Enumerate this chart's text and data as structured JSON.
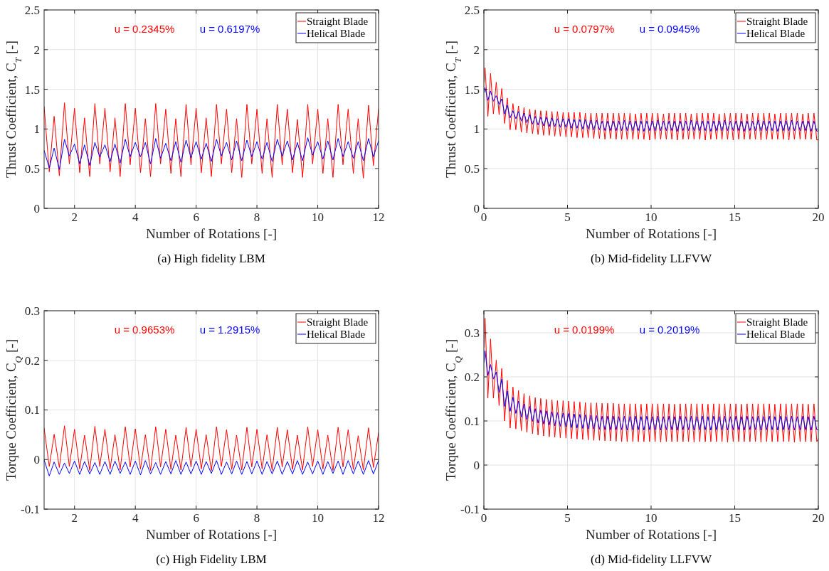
{
  "chart_data": [
    {
      "type": "line",
      "title": "(a)  High fidelity LBM",
      "xlabel": "Number of Rotations [-]",
      "ylabel": "Thrust Coefficient, C$_{T}$ [-]",
      "annotations": [
        "u = 0.2345%",
        "u = 0.6197%"
      ],
      "xlim": [
        1,
        12
      ],
      "xticks": [
        2,
        4,
        6,
        8,
        10,
        12
      ],
      "ylim": [
        0,
        2.5
      ],
      "yticks": [
        0,
        0.5,
        1,
        1.5,
        2,
        2.5
      ],
      "grid": true,
      "legend": "top right",
      "x": [
        1,
        1.17,
        1.33,
        1.5,
        1.67,
        1.83,
        2,
        2.17,
        2.33,
        2.5,
        2.67,
        2.83,
        3,
        3.17,
        3.33,
        3.5,
        3.67,
        3.83,
        4,
        4.17,
        4.33,
        4.5,
        4.67,
        4.83,
        5,
        5.17,
        5.33,
        5.5,
        5.67,
        5.83,
        6,
        6.17,
        6.33,
        6.5,
        6.67,
        6.83,
        7,
        7.17,
        7.33,
        7.5,
        7.67,
        7.83,
        8,
        8.17,
        8.33,
        8.5,
        8.67,
        8.83,
        9,
        9.17,
        9.33,
        9.5,
        9.67,
        9.83,
        10,
        10.17,
        10.33,
        10.5,
        10.67,
        10.83,
        11,
        11.17,
        11.33,
        11.5,
        11.67,
        11.83,
        12
      ],
      "series": [
        {
          "name": "Straight Blade",
          "color": "#ff0000",
          "values": [
            1.28,
            0.46,
            1.16,
            0.41,
            1.33,
            0.56,
            1.26,
            0.45,
            1.14,
            0.4,
            1.32,
            0.56,
            1.26,
            0.46,
            1.14,
            0.4,
            1.32,
            0.55,
            1.26,
            0.45,
            1.13,
            0.4,
            1.32,
            0.56,
            1.25,
            0.44,
            1.13,
            0.4,
            1.31,
            0.55,
            1.26,
            0.45,
            1.14,
            0.4,
            1.31,
            0.56,
            1.25,
            0.45,
            1.13,
            0.39,
            1.31,
            0.56,
            1.25,
            0.44,
            1.13,
            0.39,
            1.31,
            0.55,
            1.25,
            0.45,
            1.12,
            0.39,
            1.31,
            0.56,
            1.25,
            0.44,
            1.13,
            0.39,
            1.31,
            0.55,
            1.25,
            0.44,
            1.13,
            0.38,
            1.3,
            0.54,
            1.25
          ]
        },
        {
          "name": "Helical Blade",
          "color": "#0000ff",
          "values": [
            0.73,
            0.51,
            0.76,
            0.49,
            0.87,
            0.66,
            0.81,
            0.56,
            0.8,
            0.54,
            0.83,
            0.65,
            0.8,
            0.59,
            0.81,
            0.57,
            0.87,
            0.65,
            0.83,
            0.65,
            0.83,
            0.56,
            0.88,
            0.63,
            0.82,
            0.6,
            0.84,
            0.58,
            0.86,
            0.64,
            0.84,
            0.62,
            0.82,
            0.59,
            0.87,
            0.66,
            0.83,
            0.61,
            0.85,
            0.6,
            0.86,
            0.65,
            0.84,
            0.62,
            0.83,
            0.59,
            0.87,
            0.66,
            0.85,
            0.61,
            0.83,
            0.6,
            0.89,
            0.67,
            0.84,
            0.62,
            0.85,
            0.61,
            0.88,
            0.65,
            0.84,
            0.63,
            0.84,
            0.6,
            0.88,
            0.65,
            0.85
          ]
        }
      ]
    },
    {
      "type": "line",
      "title": "(b)  Mid-fidelity LLFVW",
      "xlabel": "Number of Rotations [-]",
      "ylabel": "Thrust Coefficient, C$_{T}$ [-]",
      "annotations": [
        "u = 0.0797%",
        "u = 0.0945%"
      ],
      "xlim": [
        0,
        20
      ],
      "xticks": [
        0,
        5,
        10,
        15,
        20
      ],
      "ylim": [
        0,
        2.5
      ],
      "yticks": [
        0,
        0.5,
        1,
        1.5,
        2,
        2.5
      ],
      "grid": true,
      "legend": "top right",
      "x": [
        0,
        0.07,
        0.24,
        0.4,
        0.57,
        0.74,
        0.91,
        1.07,
        1.24,
        1.4,
        1.57,
        1.74,
        1.91,
        2.07,
        2.24,
        2.4,
        2.57,
        2.74,
        2.91,
        3.07,
        3.24,
        3.4,
        3.57,
        3.74,
        3.91,
        4.07,
        4.24,
        4.4,
        4.57,
        4.74,
        4.91,
        5.07,
        5.24,
        5.4,
        5.57,
        5.74,
        5.91,
        6.07,
        6.24,
        6.4,
        6.57,
        6.74,
        6.91,
        7.07,
        7.24,
        7.4,
        7.57,
        7.74,
        7.91,
        8.07,
        8.24,
        8.4,
        8.57,
        8.74,
        8.91,
        9.07,
        9.24,
        9.4,
        9.57,
        9.74,
        9.91,
        10.07,
        10.24,
        10.4,
        10.57,
        10.74,
        10.91,
        11.07,
        11.24,
        11.4,
        11.57,
        11.74,
        11.91,
        12.07,
        12.24,
        12.4,
        12.57,
        12.74,
        12.91,
        13.07,
        13.24,
        13.4,
        13.57,
        13.74,
        13.91,
        14.07,
        14.24,
        14.4,
        14.57,
        14.74,
        14.91,
        15.07,
        15.24,
        15.4,
        15.57,
        15.74,
        15.91,
        16.07,
        16.24,
        16.4,
        16.57,
        16.74,
        16.91,
        17.07,
        17.24,
        17.4,
        17.57,
        17.74,
        17.91,
        18.07,
        18.24,
        18.4,
        18.57,
        18.74,
        18.91,
        19.07,
        19.24,
        19.4,
        19.57,
        19.74,
        19.91,
        20
      ],
      "series": [
        {
          "name": "Straight Blade",
          "color": "#ff0000",
          "values": [
            1.59,
            1.77,
            1.16,
            1.7,
            1.19,
            1.59,
            1.18,
            1.51,
            1.07,
            1.39,
            0.99,
            1.32,
            0.99,
            1.29,
            0.96,
            1.27,
            0.95,
            1.25,
            0.94,
            1.24,
            0.93,
            1.23,
            0.92,
            1.23,
            0.92,
            1.22,
            0.91,
            1.22,
            0.91,
            1.21,
            0.9,
            1.21,
            0.9,
            1.21,
            0.89,
            1.21,
            0.89,
            1.2,
            0.89,
            1.2,
            0.88,
            1.2,
            0.88,
            1.2,
            0.87,
            1.2,
            0.88,
            1.2,
            0.87,
            1.2,
            0.87,
            1.2,
            0.87,
            1.2,
            0.87,
            1.19,
            0.87,
            1.2,
            0.87,
            1.2,
            0.86,
            1.2,
            0.87,
            1.2,
            0.87,
            1.19,
            0.87,
            1.2,
            0.87,
            1.2,
            0.86,
            1.2,
            0.87,
            1.2,
            0.87,
            1.19,
            0.87,
            1.2,
            0.87,
            1.2,
            0.86,
            1.2,
            0.87,
            1.2,
            0.87,
            1.19,
            0.87,
            1.2,
            0.87,
            1.2,
            0.86,
            1.2,
            0.87,
            1.2,
            0.87,
            1.19,
            0.87,
            1.2,
            0.87,
            1.2,
            0.86,
            1.2,
            0.87,
            1.2,
            0.87,
            1.19,
            0.87,
            1.2,
            0.87,
            1.2,
            0.86,
            1.2,
            0.87,
            1.2,
            0.87,
            1.19,
            0.87,
            1.2,
            0.87,
            1.2,
            0.86,
            0.87
          ]
        },
        {
          "name": "Helical Blade",
          "color": "#0000ff",
          "values": [
            1.46,
            1.52,
            1.36,
            1.48,
            1.35,
            1.42,
            1.31,
            1.38,
            1.19,
            1.3,
            1.14,
            1.23,
            1.13,
            1.22,
            1.1,
            1.2,
            1.08,
            1.18,
            1.06,
            1.16,
            1.05,
            1.15,
            1.04,
            1.15,
            1.03,
            1.14,
            1.03,
            1.13,
            1.02,
            1.13,
            1.02,
            1.13,
            1.01,
            1.12,
            1.01,
            1.12,
            1.0,
            1.12,
            1.0,
            1.11,
            0.99,
            1.11,
            0.99,
            1.1,
            0.98,
            1.1,
            0.98,
            1.1,
            0.98,
            1.1,
            0.98,
            1.11,
            0.98,
            1.1,
            0.98,
            1.1,
            0.98,
            1.1,
            0.97,
            1.1,
            0.98,
            1.1,
            0.98,
            1.11,
            0.98,
            1.1,
            0.98,
            1.1,
            0.98,
            1.1,
            0.97,
            1.1,
            0.98,
            1.1,
            0.98,
            1.11,
            0.98,
            1.1,
            0.98,
            1.1,
            0.98,
            1.1,
            0.97,
            1.1,
            0.98,
            1.1,
            0.98,
            1.11,
            0.98,
            1.1,
            0.98,
            1.1,
            0.98,
            1.1,
            0.97,
            1.1,
            0.98,
            1.1,
            0.98,
            1.11,
            0.98,
            1.1,
            0.98,
            1.1,
            0.98,
            1.1,
            0.97,
            1.1,
            0.98,
            1.1,
            0.98,
            1.11,
            0.98,
            1.1,
            0.98,
            1.1,
            0.98,
            1.1,
            0.97,
            1.1,
            0.97,
            0.98
          ]
        }
      ]
    },
    {
      "type": "line",
      "title": "(c)  High Fidelity LBM",
      "xlabel": "Number of Rotations [-]",
      "ylabel": "Torque Coefficient, C$_{Q}$ [-]",
      "annotations": [
        "u = 0.9653%",
        "u = 1.2915%"
      ],
      "xlim": [
        1,
        12
      ],
      "xticks": [
        2,
        4,
        6,
        8,
        10,
        12
      ],
      "ylim": [
        -0.1,
        0.3
      ],
      "yticks": [
        -0.1,
        0,
        0.1,
        0.2,
        0.3
      ],
      "grid": true,
      "legend": "top right",
      "x": [
        1,
        1.17,
        1.33,
        1.5,
        1.67,
        1.83,
        2,
        2.17,
        2.33,
        2.5,
        2.67,
        2.83,
        3,
        3.17,
        3.33,
        3.5,
        3.67,
        3.83,
        4,
        4.17,
        4.33,
        4.5,
        4.67,
        4.83,
        5,
        5.17,
        5.33,
        5.5,
        5.67,
        5.83,
        6,
        6.17,
        6.33,
        6.5,
        6.67,
        6.83,
        7,
        7.17,
        7.33,
        7.5,
        7.67,
        7.83,
        8,
        8.17,
        8.33,
        8.5,
        8.67,
        8.83,
        9,
        9.17,
        9.33,
        9.5,
        9.67,
        9.83,
        10,
        10.17,
        10.33,
        10.5,
        10.67,
        10.83,
        11,
        11.17,
        11.33,
        11.5,
        11.67,
        11.83,
        12
      ],
      "series": [
        {
          "name": "Straight Blade",
          "color": "#ff0000",
          "values": [
            0.063,
            -0.014,
            0.051,
            -0.016,
            0.068,
            -0.014,
            0.061,
            -0.019,
            0.049,
            -0.022,
            0.067,
            -0.014,
            0.061,
            -0.019,
            0.05,
            -0.021,
            0.066,
            -0.015,
            0.062,
            -0.019,
            0.05,
            -0.022,
            0.066,
            -0.015,
            0.061,
            -0.02,
            0.049,
            -0.021,
            0.065,
            -0.015,
            0.061,
            -0.019,
            0.05,
            -0.022,
            0.066,
            -0.014,
            0.06,
            -0.02,
            0.049,
            -0.021,
            0.065,
            -0.015,
            0.061,
            -0.019,
            0.05,
            -0.022,
            0.065,
            -0.015,
            0.06,
            -0.02,
            0.049,
            -0.021,
            0.066,
            -0.014,
            0.06,
            -0.019,
            0.049,
            -0.022,
            0.065,
            -0.015,
            0.06,
            -0.02,
            0.048,
            -0.021,
            0.064,
            -0.016,
            0.054
          ]
        },
        {
          "name": "Helical Blade",
          "color": "#0000ff",
          "values": [
            -0.001,
            -0.033,
            -0.005,
            -0.03,
            -0.007,
            -0.028,
            -0.003,
            -0.03,
            -0.004,
            -0.029,
            -0.006,
            -0.03,
            -0.004,
            -0.03,
            -0.003,
            -0.028,
            -0.005,
            -0.03,
            -0.003,
            -0.031,
            -0.002,
            -0.029,
            -0.006,
            -0.03,
            -0.004,
            -0.029,
            -0.002,
            -0.03,
            -0.005,
            -0.029,
            -0.003,
            -0.03,
            -0.004,
            -0.028,
            -0.002,
            -0.03,
            -0.005,
            -0.029,
            -0.003,
            -0.03,
            -0.004,
            -0.029,
            -0.003,
            -0.03,
            -0.004,
            -0.029,
            -0.003,
            -0.03,
            -0.004,
            -0.029,
            -0.002,
            -0.03,
            -0.005,
            -0.029,
            -0.003,
            -0.03,
            -0.004,
            -0.028,
            -0.003,
            -0.03,
            -0.002,
            -0.029,
            -0.003,
            -0.03,
            -0.002,
            -0.029,
            -0.002
          ]
        }
      ]
    },
    {
      "type": "line",
      "title": "(d)  Mid-fidelity LLFVW",
      "xlabel": "Number of Rotations [-]",
      "ylabel": "Torque Coefficient, C$_{Q}$ [-]",
      "annotations": [
        "u = 0.0199%",
        "u = 0.2019%"
      ],
      "xlim": [
        0,
        20
      ],
      "xticks": [
        0,
        5,
        10,
        15,
        20
      ],
      "ylim": [
        -0.1,
        0.35
      ],
      "yticks": [
        -0.1,
        0,
        0.1,
        0.2,
        0.3
      ],
      "grid": true,
      "legend": "top right",
      "x": [
        0,
        0.07,
        0.24,
        0.4,
        0.57,
        0.74,
        0.91,
        1.07,
        1.24,
        1.4,
        1.57,
        1.74,
        1.91,
        2.07,
        2.24,
        2.4,
        2.57,
        2.74,
        2.91,
        3.07,
        3.24,
        3.4,
        3.57,
        3.74,
        3.91,
        4.07,
        4.24,
        4.4,
        4.57,
        4.74,
        4.91,
        5.07,
        5.24,
        5.4,
        5.57,
        5.74,
        5.91,
        6.07,
        6.24,
        6.4,
        6.57,
        6.74,
        6.91,
        7.07,
        7.24,
        7.4,
        7.57,
        7.74,
        7.91,
        8.07,
        8.24,
        8.4,
        8.57,
        8.74,
        8.91,
        9.07,
        9.24,
        9.4,
        9.57,
        9.74,
        9.91,
        10.07,
        10.24,
        10.4,
        10.57,
        10.74,
        10.91,
        11.07,
        11.24,
        11.4,
        11.57,
        11.74,
        11.91,
        12.07,
        12.24,
        12.4,
        12.57,
        12.74,
        12.91,
        13.07,
        13.24,
        13.4,
        13.57,
        13.74,
        13.91,
        14.07,
        14.24,
        14.4,
        14.57,
        14.74,
        14.91,
        15.07,
        15.24,
        15.4,
        15.57,
        15.74,
        15.91,
        16.07,
        16.24,
        16.4,
        16.57,
        16.74,
        16.91,
        17.07,
        17.24,
        17.4,
        17.57,
        17.74,
        17.91,
        18.07,
        18.24,
        18.4,
        18.57,
        18.74,
        18.91,
        19.07,
        19.24,
        19.4,
        19.57,
        19.74,
        19.91,
        20
      ],
      "series": [
        {
          "name": "Straight Blade",
          "color": "#ff0000",
          "values": [
            0.267,
            0.333,
            0.152,
            0.286,
            0.152,
            0.238,
            0.135,
            0.219,
            0.1,
            0.192,
            0.084,
            0.177,
            0.082,
            0.169,
            0.078,
            0.162,
            0.074,
            0.157,
            0.071,
            0.153,
            0.068,
            0.151,
            0.066,
            0.149,
            0.064,
            0.148,
            0.063,
            0.146,
            0.062,
            0.146,
            0.061,
            0.145,
            0.06,
            0.144,
            0.059,
            0.143,
            0.058,
            0.142,
            0.057,
            0.141,
            0.056,
            0.141,
            0.056,
            0.14,
            0.055,
            0.14,
            0.055,
            0.14,
            0.054,
            0.139,
            0.053,
            0.139,
            0.053,
            0.139,
            0.053,
            0.139,
            0.053,
            0.138,
            0.053,
            0.139,
            0.053,
            0.139,
            0.053,
            0.139,
            0.052,
            0.139,
            0.053,
            0.139,
            0.053,
            0.138,
            0.053,
            0.139,
            0.053,
            0.139,
            0.053,
            0.139,
            0.052,
            0.139,
            0.053,
            0.139,
            0.053,
            0.138,
            0.053,
            0.139,
            0.053,
            0.139,
            0.053,
            0.139,
            0.052,
            0.139,
            0.053,
            0.139,
            0.053,
            0.138,
            0.053,
            0.139,
            0.053,
            0.139,
            0.053,
            0.139,
            0.052,
            0.139,
            0.053,
            0.139,
            0.053,
            0.138,
            0.053,
            0.139,
            0.053,
            0.139,
            0.053,
            0.139,
            0.052,
            0.139,
            0.053,
            0.139,
            0.053,
            0.138,
            0.053,
            0.139,
            0.053,
            0.06
          ]
        },
        {
          "name": "Helical Blade",
          "color": "#0000ff",
          "values": [
            0.232,
            0.259,
            0.203,
            0.228,
            0.195,
            0.211,
            0.165,
            0.195,
            0.133,
            0.168,
            0.122,
            0.154,
            0.117,
            0.145,
            0.109,
            0.138,
            0.103,
            0.133,
            0.099,
            0.128,
            0.095,
            0.125,
            0.093,
            0.123,
            0.091,
            0.121,
            0.089,
            0.119,
            0.088,
            0.118,
            0.087,
            0.117,
            0.085,
            0.116,
            0.084,
            0.115,
            0.083,
            0.114,
            0.082,
            0.113,
            0.082,
            0.112,
            0.081,
            0.111,
            0.08,
            0.111,
            0.08,
            0.111,
            0.08,
            0.11,
            0.08,
            0.111,
            0.079,
            0.11,
            0.08,
            0.111,
            0.08,
            0.11,
            0.079,
            0.111,
            0.08,
            0.11,
            0.08,
            0.111,
            0.079,
            0.11,
            0.08,
            0.111,
            0.08,
            0.11,
            0.079,
            0.111,
            0.08,
            0.11,
            0.08,
            0.111,
            0.079,
            0.11,
            0.08,
            0.111,
            0.08,
            0.11,
            0.079,
            0.111,
            0.08,
            0.11,
            0.08,
            0.111,
            0.079,
            0.11,
            0.08,
            0.111,
            0.08,
            0.11,
            0.079,
            0.111,
            0.08,
            0.11,
            0.08,
            0.111,
            0.079,
            0.11,
            0.08,
            0.111,
            0.08,
            0.11,
            0.079,
            0.111,
            0.08,
            0.11,
            0.08,
            0.111,
            0.079,
            0.11,
            0.08,
            0.111,
            0.08,
            0.11,
            0.079,
            0.111,
            0.08,
            0.08
          ]
        }
      ]
    }
  ]
}
